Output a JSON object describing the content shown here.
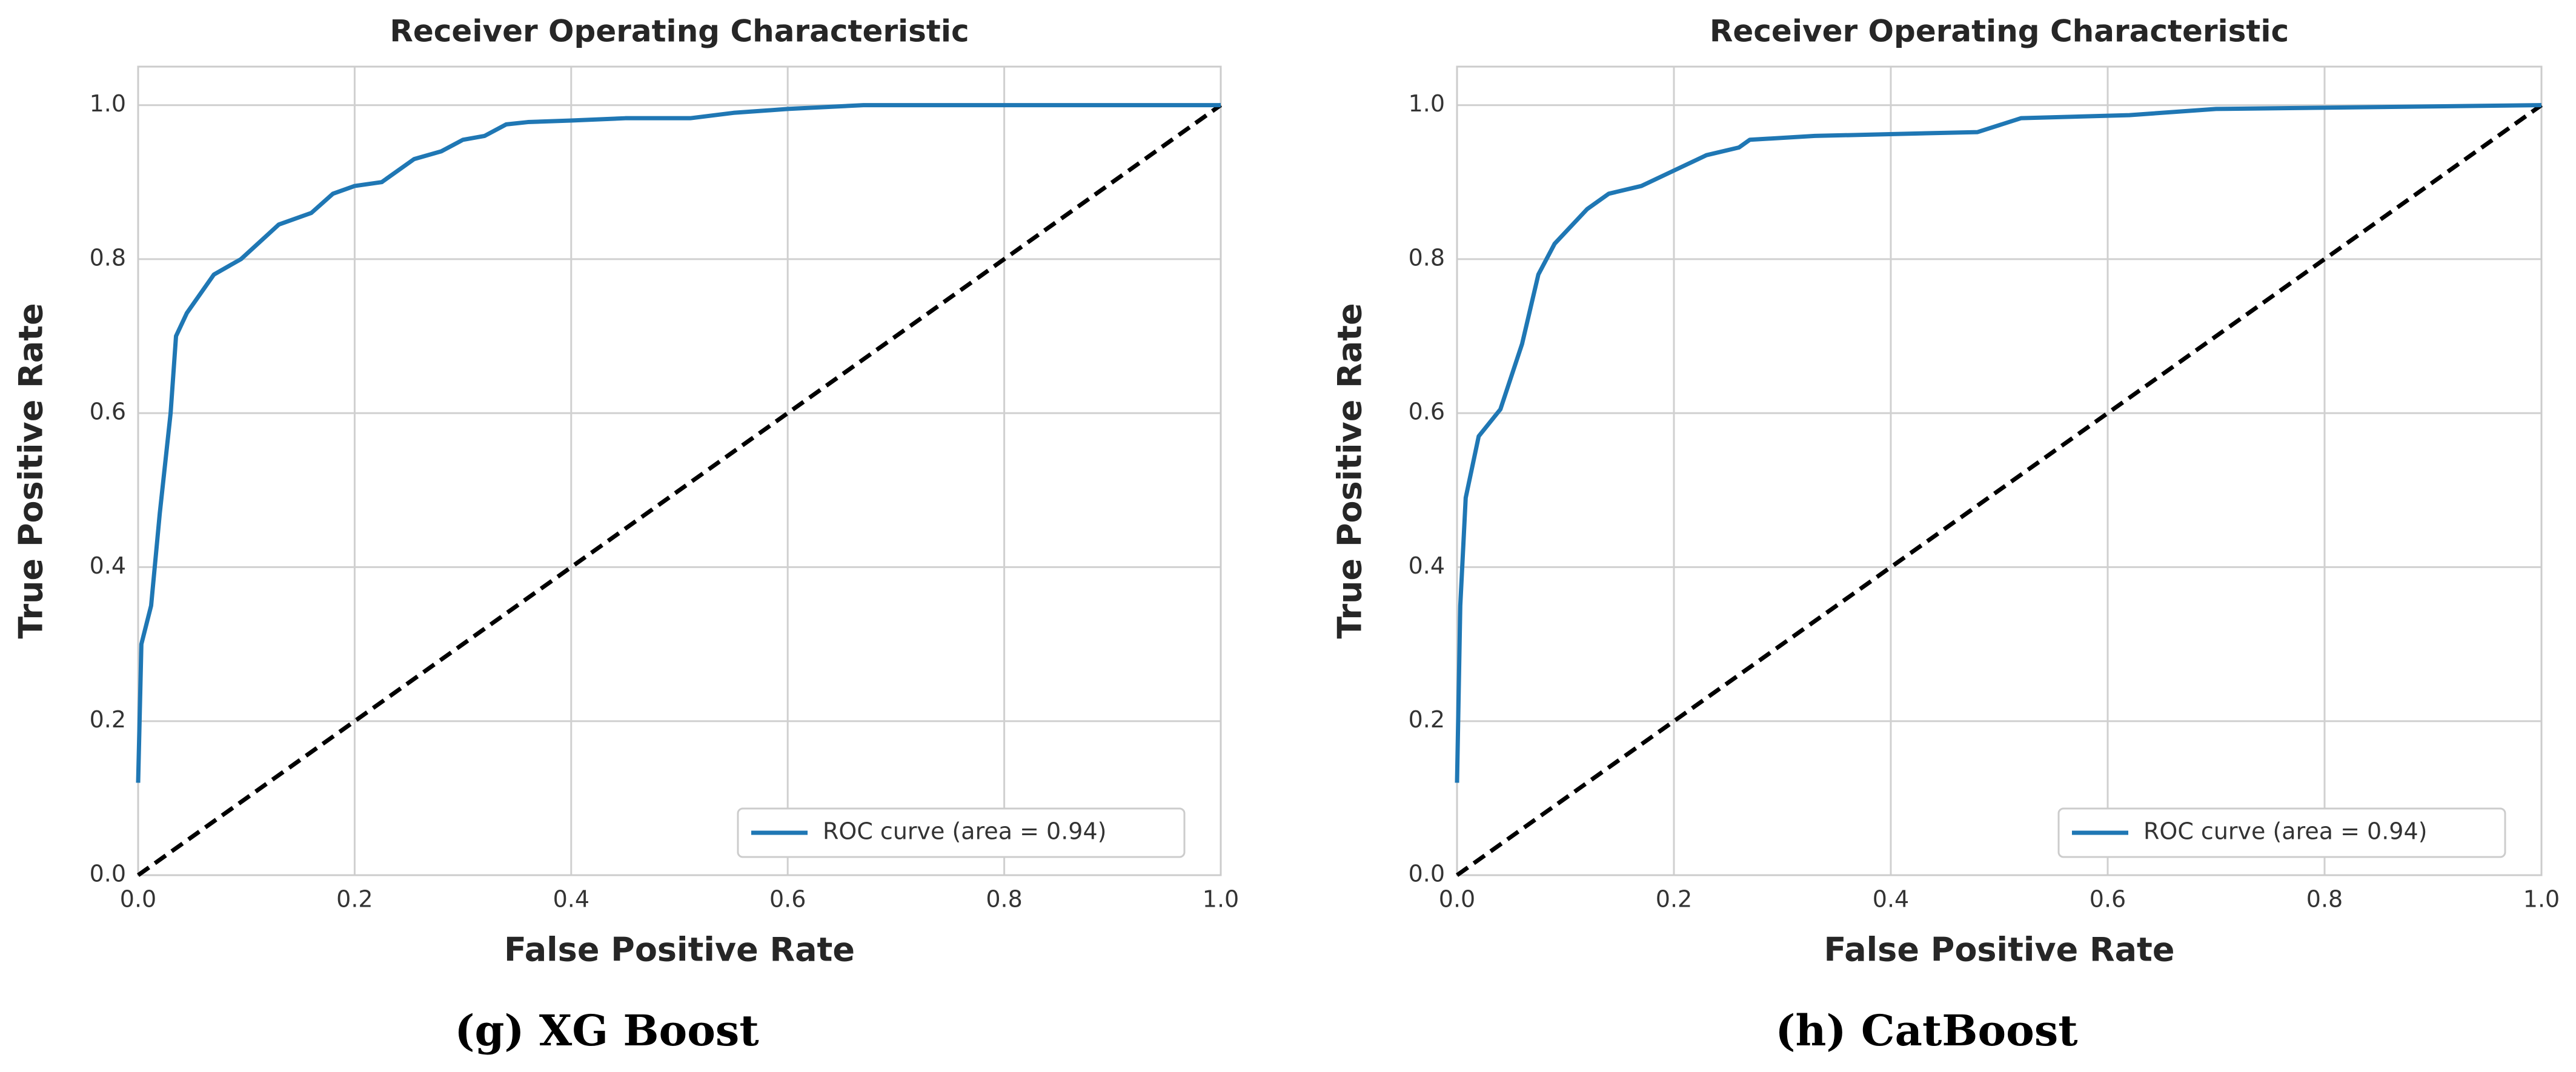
{
  "chart_data": [
    {
      "type": "line",
      "title": "Receiver Operating Characteristic",
      "xlabel": "False Positive Rate",
      "ylabel": "True Positive Rate",
      "caption": "(g) XG Boost",
      "x": [
        0,
        0.003,
        0.012,
        0.02,
        0.03,
        0.035,
        0.045,
        0.07,
        0.095,
        0.13,
        0.16,
        0.18,
        0.2,
        0.225,
        0.255,
        0.28,
        0.3,
        0.32,
        0.34,
        0.36,
        0.4,
        0.45,
        0.51,
        0.55,
        0.6,
        0.67,
        1.0
      ],
      "series": [
        {
          "name": "ROC curve (area = 0.94)",
          "color": "#1f77b4",
          "values": [
            0.12,
            0.3,
            0.35,
            0.47,
            0.6,
            0.7,
            0.73,
            0.78,
            0.8,
            0.845,
            0.86,
            0.885,
            0.895,
            0.9,
            0.93,
            0.94,
            0.955,
            0.96,
            0.975,
            0.978,
            0.98,
            0.983,
            0.983,
            0.99,
            0.995,
            1.0,
            1.0
          ]
        }
      ],
      "reference": {
        "x": [
          0,
          1
        ],
        "values": [
          0,
          1
        ],
        "color": "#000000",
        "style": "dashed"
      },
      "xlim": [
        0,
        1
      ],
      "ylim": [
        0,
        1.05
      ],
      "xticks": [
        {
          "value": 0,
          "label": "0.0"
        },
        0.2,
        0.4,
        0.6,
        0.8,
        {
          "value": 1,
          "label": "1.0"
        }
      ],
      "yticks": [
        {
          "value": 0,
          "label": "0.0"
        },
        0.2,
        0.4,
        0.6,
        0.8,
        {
          "value": 1,
          "label": "1.0"
        }
      ],
      "grid": true,
      "legend": "lower right"
    },
    {
      "type": "line",
      "title": "Receiver Operating Characteristic",
      "xlabel": "False Positive Rate",
      "ylabel": "True Positive Rate",
      "caption": "(h) CatBoost",
      "x": [
        0,
        0.003,
        0.008,
        0.02,
        0.04,
        0.06,
        0.075,
        0.09,
        0.12,
        0.14,
        0.17,
        0.2,
        0.23,
        0.26,
        0.27,
        0.33,
        0.48,
        0.52,
        0.62,
        0.7,
        1.0
      ],
      "series": [
        {
          "name": "ROC curve (area = 0.94)",
          "color": "#1f77b4",
          "values": [
            0.12,
            0.35,
            0.49,
            0.57,
            0.605,
            0.69,
            0.78,
            0.82,
            0.865,
            0.885,
            0.895,
            0.915,
            0.935,
            0.945,
            0.955,
            0.96,
            0.965,
            0.983,
            0.987,
            0.995,
            1.0
          ]
        }
      ],
      "reference": {
        "x": [
          0,
          1
        ],
        "values": [
          0,
          1
        ],
        "color": "#000000",
        "style": "dashed"
      },
      "xlim": [
        0,
        1
      ],
      "ylim": [
        0,
        1.05
      ],
      "xticks": [
        {
          "value": 0,
          "label": "0.0"
        },
        0.2,
        0.4,
        0.6,
        0.8,
        {
          "value": 1,
          "label": "1.0"
        }
      ],
      "yticks": [
        {
          "value": 0,
          "label": "0.0"
        },
        0.2,
        0.4,
        0.6,
        0.8,
        {
          "value": 1,
          "label": "1.0"
        }
      ],
      "grid": true,
      "legend": "lower right"
    }
  ]
}
